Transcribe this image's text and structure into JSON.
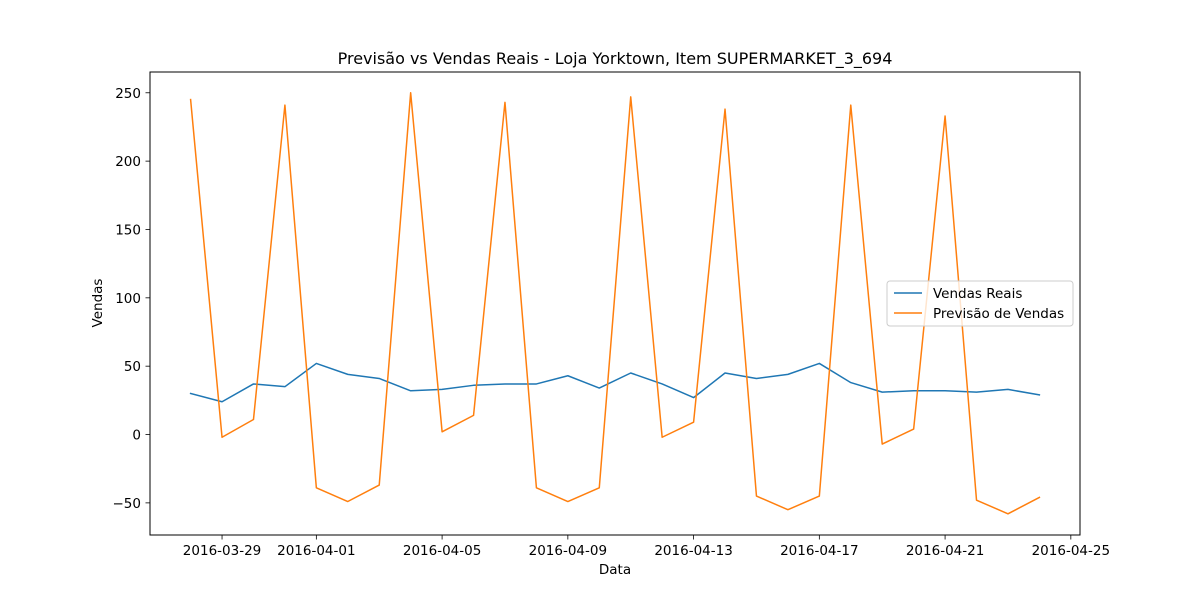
{
  "chart_data": {
    "type": "line",
    "title": "Previsão vs Vendas Reais - Loja Yorktown, Item SUPERMARKET_3_694",
    "xlabel": "Data",
    "ylabel": "Vendas",
    "x": [
      "2016-03-28",
      "2016-03-29",
      "2016-03-30",
      "2016-03-31",
      "2016-04-01",
      "2016-04-02",
      "2016-04-03",
      "2016-04-04",
      "2016-04-05",
      "2016-04-06",
      "2016-04-07",
      "2016-04-08",
      "2016-04-09",
      "2016-04-10",
      "2016-04-11",
      "2016-04-12",
      "2016-04-13",
      "2016-04-14",
      "2016-04-15",
      "2016-04-16",
      "2016-04-17",
      "2016-04-18",
      "2016-04-19",
      "2016-04-20",
      "2016-04-21",
      "2016-04-22",
      "2016-04-23",
      "2016-04-24"
    ],
    "xticks": [
      "2016-03-29",
      "2016-04-01",
      "2016-04-05",
      "2016-04-09",
      "2016-04-13",
      "2016-04-17",
      "2016-04-21",
      "2016-04-25"
    ],
    "xlim": [
      "2016-03-26T17:00",
      "2016-04-25T07:00"
    ],
    "yticks": [
      -50,
      0,
      50,
      100,
      150,
      200,
      250
    ],
    "ylim": [
      -73.5,
      265.2
    ],
    "grid": false,
    "legend_position": "center-right",
    "series": [
      {
        "name": "Vendas Reais",
        "color": "#1f77b4",
        "values": [
          30,
          24,
          37,
          35,
          52,
          44,
          41,
          32,
          33,
          36,
          37,
          37,
          43,
          34,
          45,
          37,
          27,
          45,
          41,
          44,
          52,
          38,
          31,
          32,
          32,
          31,
          33,
          29
        ]
      },
      {
        "name": "Previsão de Vendas",
        "color": "#ff7f0e",
        "values": [
          245,
          -2,
          11,
          241,
          -39,
          -49,
          -37,
          250,
          2,
          14,
          243,
          -39,
          -49,
          -39,
          247,
          -2,
          9,
          238,
          -45,
          -55,
          -45,
          241,
          -7,
          4,
          233,
          -48,
          -58,
          -46
        ]
      }
    ]
  }
}
